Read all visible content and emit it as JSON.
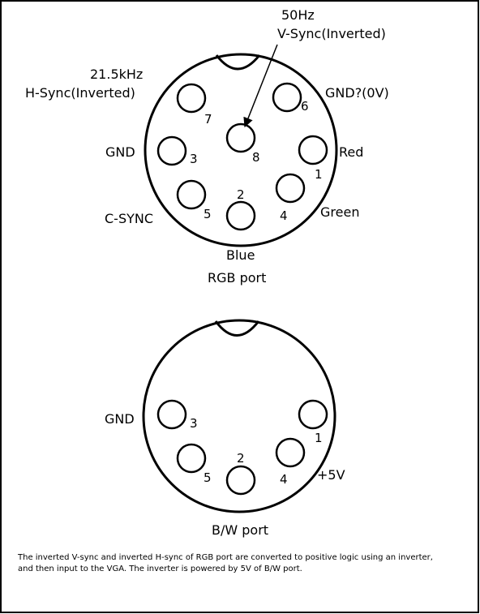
{
  "rgb_port": {
    "title": "RGB port",
    "pins": [
      {
        "num": "1",
        "label": "Red"
      },
      {
        "num": "2",
        "label": "Blue"
      },
      {
        "num": "3",
        "label": "GND"
      },
      {
        "num": "4",
        "label": "Green"
      },
      {
        "num": "5",
        "label": "C-SYNC"
      },
      {
        "num": "6",
        "label": "GND?(0V)"
      },
      {
        "num": "7",
        "label_line1": "21.5kHz",
        "label_line2": "H-Sync(Inverted)"
      },
      {
        "num": "8",
        "label_line1": "50Hz",
        "label_line2": "V-Sync(Inverted)"
      }
    ]
  },
  "bw_port": {
    "title": "B/W port",
    "pins": [
      {
        "num": "1",
        "label": ""
      },
      {
        "num": "2",
        "label": ""
      },
      {
        "num": "3",
        "label": "GND"
      },
      {
        "num": "4",
        "label": "+5V"
      },
      {
        "num": "5",
        "label": ""
      }
    ]
  },
  "note": {
    "line1": "The inverted V-sync and inverted H-sync of RGB port are converted to positive logic using an inverter,",
    "line2": "and then input to the VGA.  The inverter is powered by 5V of B/W port."
  }
}
